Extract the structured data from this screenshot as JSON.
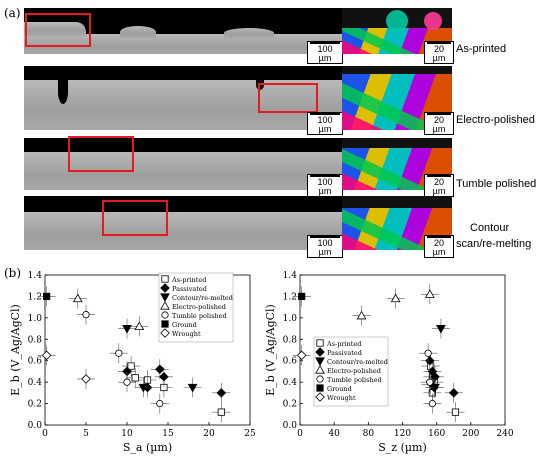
{
  "panel_a_label": "(a)",
  "panel_b_label": "(b)",
  "rows": [
    {
      "condition": "As-printed",
      "scale_left": "100 µm",
      "scale_right": "20 µm"
    },
    {
      "condition": "Electro-polished",
      "scale_left": "100 µm",
      "scale_right": "20 µm"
    },
    {
      "condition": "Tumble polished",
      "scale_left": "100 µm",
      "scale_right": "20 µm"
    },
    {
      "condition": "Contour",
      "condition_line2": "scan/re-melting",
      "scale_left": "100 µm",
      "scale_right": "20 µm"
    }
  ],
  "chart_data": [
    {
      "type": "scatter",
      "ylabel": "E_b (V_Ag/AgCl)",
      "xlabel": "S_a (µm)",
      "xlim": [
        0,
        25
      ],
      "ylim": [
        0,
        1.4
      ],
      "xticks": [
        "0",
        "5",
        "10",
        "15",
        "20",
        "25"
      ],
      "yticks": [
        "0.0",
        "0.2",
        "0.4",
        "0.6",
        "0.8",
        "1.0",
        "1.2",
        "1.4"
      ],
      "legend": [
        "As-printed",
        "Passivated",
        "Contour/re-melted",
        "Electro-polished",
        "Tumble polished",
        "Ground",
        "Wrought"
      ],
      "legend_position": "top-right",
      "series": [
        {
          "name": "As-printed",
          "marker": "square-open",
          "points": [
            [
              10.5,
              0.55
            ],
            [
              11,
              0.44
            ],
            [
              12.5,
              0.42
            ],
            [
              14.5,
              0.35
            ],
            [
              21.5,
              0.12
            ]
          ]
        },
        {
          "name": "Passivated",
          "marker": "diamond-filled",
          "points": [
            [
              10,
              0.5
            ],
            [
              12.5,
              0.35
            ],
            [
              14,
              0.52
            ],
            [
              14.5,
              0.45
            ],
            [
              21.5,
              0.3
            ]
          ]
        },
        {
          "name": "Contour/re-melted",
          "marker": "triangle-down-filled",
          "points": [
            [
              10,
              0.9
            ],
            [
              12,
              0.35
            ],
            [
              18,
              0.35
            ]
          ]
        },
        {
          "name": "Electro-polished",
          "marker": "triangle-up-open",
          "points": [
            [
              4,
              1.18
            ],
            [
              11.5,
              0.92
            ]
          ]
        },
        {
          "name": "Tumble polished",
          "marker": "circle-open",
          "points": [
            [
              5,
              1.03
            ],
            [
              9,
              0.67
            ],
            [
              10,
              0.4
            ],
            [
              14,
              0.2
            ]
          ]
        },
        {
          "name": "Ground",
          "marker": "square-filled",
          "points": [
            [
              0.2,
              1.2
            ]
          ]
        },
        {
          "name": "Wrought",
          "marker": "diamond-open",
          "points": [
            [
              0.2,
              0.65
            ],
            [
              5,
              0.43
            ]
          ]
        }
      ]
    },
    {
      "type": "scatter",
      "ylabel": "E_b (V_Ag/AgCl)",
      "xlabel": "S_z (µm)",
      "xlim": [
        0,
        240
      ],
      "ylim": [
        0,
        1.4
      ],
      "xticks": [
        "0",
        "40",
        "80",
        "120",
        "160",
        "200",
        "240"
      ],
      "yticks": [
        "0.0",
        "0.2",
        "0.4",
        "0.6",
        "0.8",
        "1.0",
        "1.2",
        "1.4"
      ],
      "legend": [
        "As-printed",
        "Passivated",
        "Contour/re-melted",
        "Electro-polished",
        "Tumble polished",
        "Ground",
        "Wrought"
      ],
      "legend_position": "center-left",
      "series": [
        {
          "name": "As-printed",
          "marker": "square-open",
          "points": [
            [
              153,
              0.55
            ],
            [
              155,
              0.45
            ],
            [
              157,
              0.4
            ],
            [
              155,
              0.3
            ],
            [
              182,
              0.12
            ]
          ]
        },
        {
          "name": "Passivated",
          "marker": "diamond-filled",
          "points": [
            [
              155,
              0.5
            ],
            [
              157,
              0.35
            ],
            [
              152,
              0.6
            ],
            [
              158,
              0.45
            ],
            [
              180,
              0.3
            ]
          ]
        },
        {
          "name": "Contour/re-melted",
          "marker": "triangle-down-filled",
          "points": [
            [
              165,
              0.9
            ],
            [
              153,
              0.38
            ],
            [
              158,
              0.35
            ]
          ]
        },
        {
          "name": "Electro-polished",
          "marker": "triangle-up-open",
          "points": [
            [
              72,
              1.02
            ],
            [
              112,
              1.18
            ],
            [
              152,
              1.22
            ]
          ]
        },
        {
          "name": "Tumble polished",
          "marker": "circle-open",
          "points": [
            [
              150,
              0.67
            ],
            [
              152,
              0.4
            ],
            [
              155,
              0.2
            ]
          ]
        },
        {
          "name": "Ground",
          "marker": "square-filled",
          "points": [
            [
              2,
              1.2
            ]
          ]
        },
        {
          "name": "Wrought",
          "marker": "diamond-open",
          "points": [
            [
              2,
              0.65
            ]
          ]
        }
      ]
    }
  ]
}
